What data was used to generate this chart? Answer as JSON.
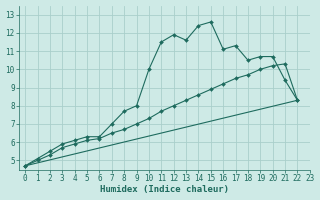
{
  "xlabel": "Humidex (Indice chaleur)",
  "bg_color": "#ceeae6",
  "grid_color": "#aacfcb",
  "line_color": "#1e6b5e",
  "xlim": [
    -0.5,
    23
  ],
  "ylim": [
    4.5,
    13.5
  ],
  "xticks": [
    0,
    1,
    2,
    3,
    4,
    5,
    6,
    7,
    8,
    9,
    10,
    11,
    12,
    13,
    14,
    15,
    16,
    17,
    18,
    19,
    20,
    21,
    22,
    23
  ],
  "yticks": [
    5,
    6,
    7,
    8,
    9,
    10,
    11,
    12,
    13
  ],
  "line1_x": [
    0,
    1,
    2,
    3,
    4,
    5,
    6,
    7,
    8,
    9,
    10,
    11,
    12,
    13,
    14,
    15,
    16,
    17,
    18,
    19,
    20,
    21,
    22
  ],
  "line1_y": [
    4.7,
    5.1,
    5.5,
    5.9,
    6.1,
    6.3,
    6.3,
    7.0,
    7.7,
    8.0,
    10.0,
    11.5,
    11.9,
    11.6,
    12.4,
    12.6,
    11.1,
    11.3,
    10.5,
    10.7,
    10.7,
    9.4,
    8.3
  ],
  "line2_x": [
    0,
    22
  ],
  "line2_y": [
    4.7,
    8.3
  ],
  "line3_x": [
    0,
    1,
    2,
    3,
    4,
    5,
    6,
    7,
    8,
    9,
    10,
    11,
    12,
    13,
    14,
    15,
    16,
    17,
    18,
    19,
    20,
    21,
    22
  ],
  "line3_y": [
    4.7,
    5.0,
    5.3,
    5.7,
    5.9,
    6.1,
    6.2,
    6.5,
    6.7,
    7.0,
    7.3,
    7.7,
    8.0,
    8.3,
    8.6,
    8.9,
    9.2,
    9.5,
    9.7,
    10.0,
    10.2,
    10.3,
    8.3
  ]
}
